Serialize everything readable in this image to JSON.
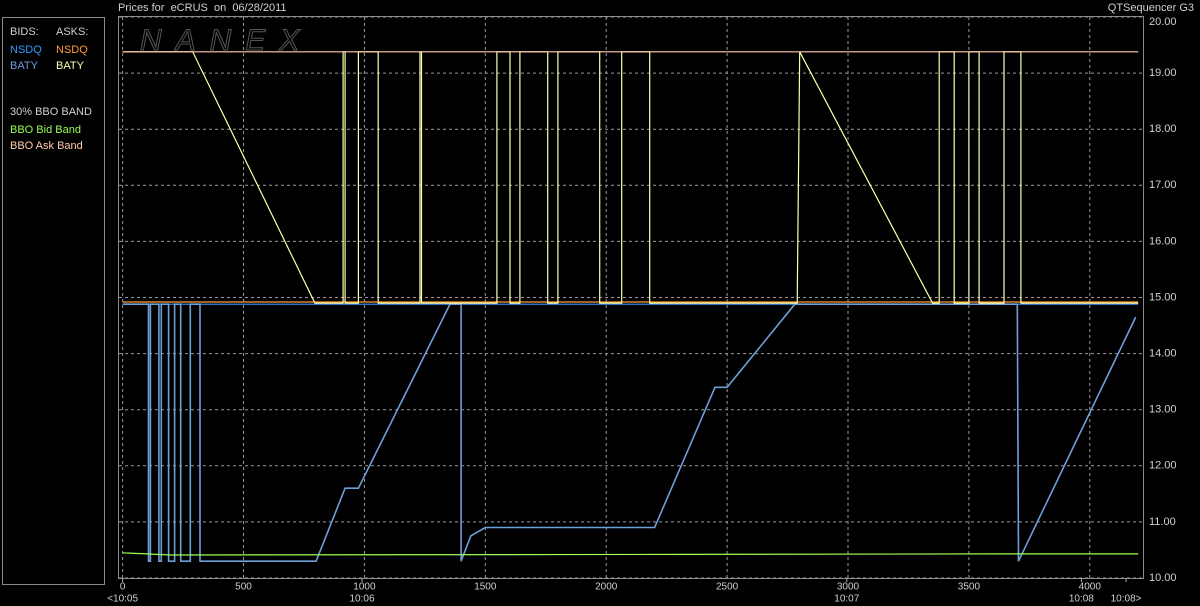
{
  "chart_data": {
    "type": "line",
    "title": "Prices for  eCRUS  on  06/28/2011",
    "app_name": "QTSequencer G3",
    "watermark": "NANEX",
    "legend": {
      "bids_label": "BIDS:",
      "asks_label": "ASKS:",
      "band_label": "30% BBO BAND"
    },
    "xlim": [
      -15,
      4220
    ],
    "ylim": [
      10,
      20
    ],
    "xticks": [
      0,
      500,
      1000,
      1500,
      2000,
      2500,
      3000,
      3500,
      4000
    ],
    "yticks": [
      {
        "value": 10,
        "label": "10.00"
      },
      {
        "value": 11,
        "label": "11.00"
      },
      {
        "value": 12,
        "label": "12.00"
      },
      {
        "value": 13,
        "label": "13.00"
      },
      {
        "value": 14,
        "label": "14.00"
      },
      {
        "value": 15,
        "label": "15.00"
      },
      {
        "value": 16,
        "label": "16.00"
      },
      {
        "value": 17,
        "label": "17.00"
      },
      {
        "value": 18,
        "label": "18.00"
      },
      {
        "value": 19,
        "label": "19.00"
      },
      {
        "value": 20,
        "label": "20.00"
      }
    ],
    "time_labels": [
      {
        "value": 0,
        "label": "<10:05"
      },
      {
        "value": 990,
        "label": "10:06"
      },
      {
        "value": 2995,
        "label": "10:07"
      },
      {
        "value": 3965,
        "label": "10:08"
      },
      {
        "value": 4150,
        "label": "10:08>"
      }
    ],
    "grid": true,
    "series": [
      {
        "name": "NSDQ",
        "side": "bid",
        "color": "#3399ff",
        "x": [
          0,
          4200
        ],
        "values": [
          14.88,
          14.88
        ]
      },
      {
        "name": "BATY",
        "side": "bid",
        "color": "#6f9fd8",
        "x": [
          0,
          107,
          107,
          115,
          115,
          150,
          150,
          160,
          160,
          190,
          190,
          215,
          215,
          240,
          240,
          280,
          280,
          320,
          320,
          800,
          920,
          975,
          1354,
          1400,
          1400,
          1440,
          1500,
          2200,
          2450,
          2500,
          2780,
          2800,
          3700,
          3705,
          4190
        ],
        "values": [
          14.88,
          14.88,
          10.3,
          10.3,
          14.88,
          14.88,
          10.3,
          10.3,
          14.88,
          14.88,
          10.3,
          10.3,
          14.88,
          14.88,
          10.3,
          10.3,
          14.88,
          14.88,
          10.3,
          10.3,
          11.6,
          11.6,
          14.88,
          14.88,
          10.3,
          10.75,
          10.9,
          10.9,
          13.4,
          13.4,
          14.88,
          14.88,
          14.88,
          10.3,
          14.65
        ]
      },
      {
        "name": "NSDQ",
        "side": "ask",
        "color": "#ff9933",
        "x": [
          0,
          4200
        ],
        "values": [
          14.92,
          14.92
        ]
      },
      {
        "name": "BATY",
        "side": "ask",
        "color": "#ffffaa",
        "x": [
          0,
          275,
          290,
          795,
          912,
          912,
          920,
          920,
          975,
          975,
          1057,
          1057,
          1230,
          1230,
          1236,
          1236,
          1548,
          1548,
          1602,
          1602,
          1643,
          1643,
          1758,
          1758,
          1800,
          1800,
          1973,
          1973,
          2064,
          2064,
          2180,
          2180,
          2790,
          2800,
          3350,
          3377,
          3377,
          3439,
          3439,
          3500,
          3500,
          3542,
          3542,
          3645,
          3645,
          3715,
          3715,
          4200
        ],
        "values": [
          19.38,
          19.38,
          19.38,
          14.9,
          14.9,
          19.38,
          19.38,
          14.9,
          14.9,
          19.38,
          19.38,
          14.9,
          14.9,
          19.38,
          19.38,
          14.9,
          14.9,
          19.38,
          19.38,
          14.9,
          14.9,
          19.38,
          19.38,
          14.9,
          14.9,
          19.38,
          19.38,
          14.9,
          14.9,
          19.38,
          19.38,
          14.9,
          14.9,
          19.38,
          14.9,
          14.9,
          19.38,
          19.38,
          14.9,
          14.9,
          19.38,
          19.38,
          14.9,
          14.9,
          19.38,
          19.38,
          14.9,
          14.9
        ]
      },
      {
        "name": "BBO Bid Band",
        "side": "band",
        "color": "#99ff55",
        "x": [
          0,
          200,
          2300,
          3600,
          4200
        ],
        "values": [
          10.45,
          10.41,
          10.42,
          10.43,
          10.43
        ]
      },
      {
        "name": "BBO Ask Band",
        "side": "band",
        "color": "#ffccaa",
        "x": [
          0,
          4200
        ],
        "values": [
          19.38,
          19.38
        ]
      }
    ]
  }
}
